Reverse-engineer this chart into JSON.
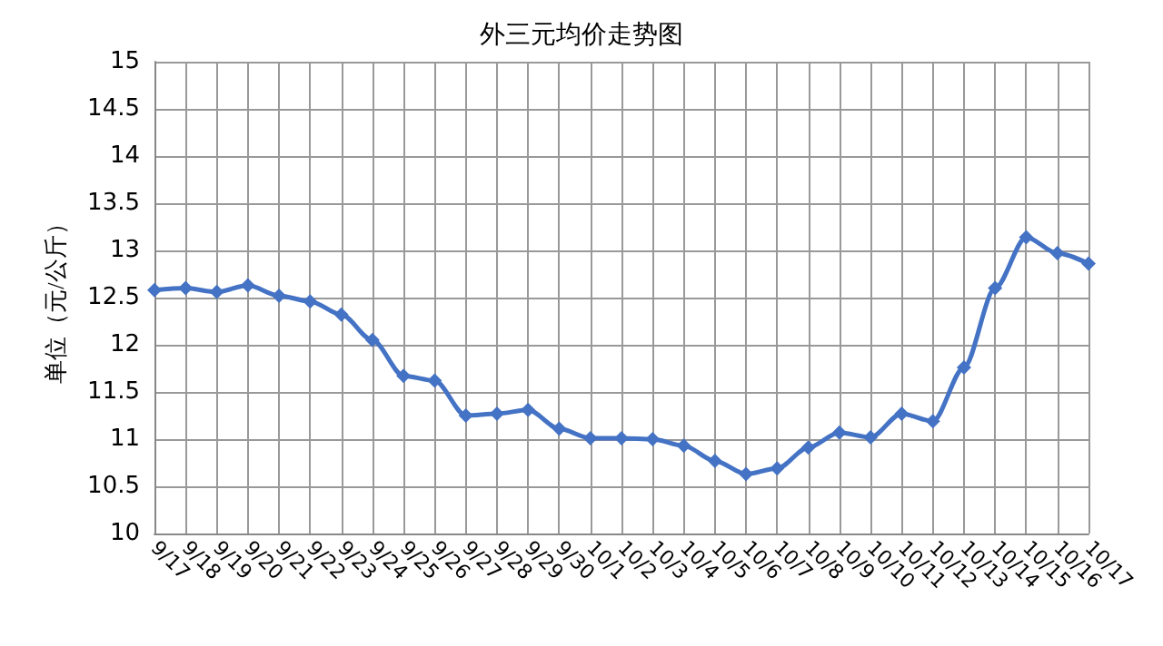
{
  "chart_data": {
    "type": "line",
    "title": "外三元均价走势图",
    "ylabel": "单位（元/公斤）",
    "categories": [
      "9/17",
      "9/18",
      "9/19",
      "9/20",
      "9/21",
      "9/22",
      "9/23",
      "9/24",
      "9/25",
      "9/26",
      "9/27",
      "9/28",
      "9/29",
      "9/30",
      "10/1",
      "10/2",
      "10/3",
      "10/4",
      "10/5",
      "10/6",
      "10/7",
      "10/8",
      "10/9",
      "10/10",
      "10/11",
      "10/12",
      "10/13",
      "10/14",
      "10/15",
      "10/16",
      "10/17"
    ],
    "series": [
      {
        "color": "#4472c4",
        "values": [
          12.58,
          12.6,
          12.56,
          12.63,
          12.52,
          12.46,
          12.32,
          12.05,
          11.67,
          11.62,
          11.25,
          11.27,
          11.31,
          11.11,
          11.01,
          11.01,
          11.0,
          10.93,
          10.77,
          10.63,
          10.69,
          10.91,
          11.07,
          11.02,
          11.27,
          11.19,
          11.76,
          12.6,
          13.14,
          12.97,
          12.86
        ]
      }
    ],
    "ylim": [
      10,
      15
    ],
    "yticks": [
      10,
      10.5,
      11,
      11.5,
      12,
      12.5,
      13,
      13.5,
      14,
      14.5,
      15
    ],
    "grid": true,
    "marker": "diamond",
    "line_style": "solid"
  }
}
